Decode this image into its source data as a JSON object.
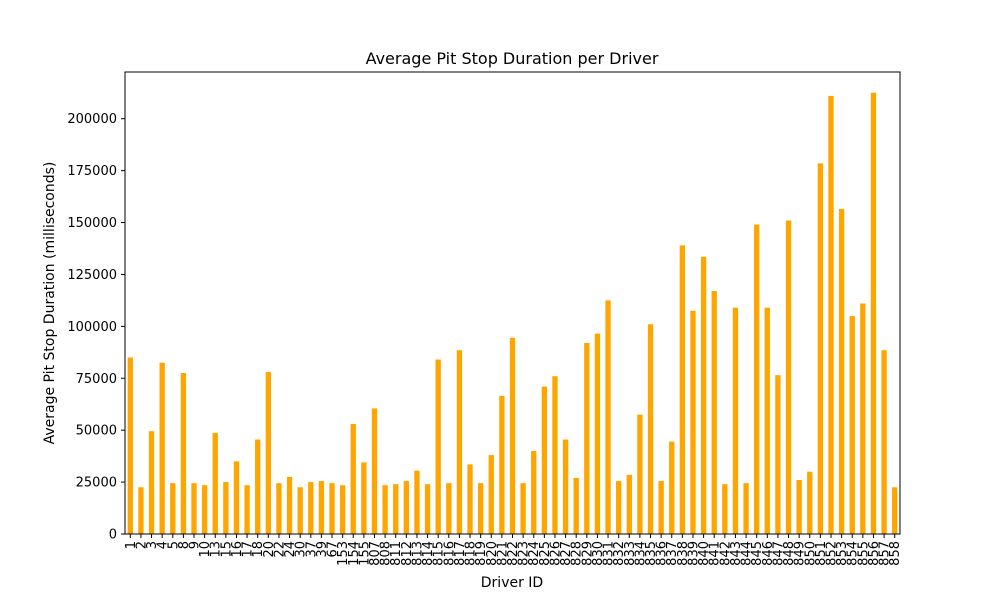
{
  "chart_data": {
    "type": "bar",
    "title": "Average Pit Stop Duration per Driver",
    "xlabel": "Driver ID",
    "ylabel": "Average Pit Stop Duration (milliseconds)",
    "bar_color": "#ffa500",
    "ylim": [
      0,
      222500
    ],
    "yticks": [
      0,
      25000,
      50000,
      75000,
      100000,
      125000,
      150000,
      175000,
      200000
    ],
    "ytick_labels": [
      "0",
      "25000",
      "50000",
      "75000",
      "100000",
      "125000",
      "150000",
      "175000",
      "200000"
    ],
    "categories": [
      "1",
      "2",
      "3",
      "4",
      "5",
      "8",
      "9",
      "10",
      "13",
      "15",
      "16",
      "17",
      "18",
      "20",
      "22",
      "24",
      "30",
      "37",
      "39",
      "67",
      "153",
      "154",
      "155",
      "807",
      "808",
      "811",
      "812",
      "813",
      "814",
      "815",
      "816",
      "817",
      "818",
      "819",
      "820",
      "821",
      "822",
      "823",
      "824",
      "825",
      "826",
      "827",
      "828",
      "829",
      "830",
      "831",
      "832",
      "833",
      "834",
      "835",
      "836",
      "837",
      "838",
      "839",
      "840",
      "841",
      "842",
      "843",
      "844",
      "845",
      "846",
      "847",
      "848",
      "849",
      "850",
      "851",
      "852",
      "853",
      "854",
      "855",
      "856",
      "857",
      "858"
    ],
    "values": [
      85000,
      22500,
      49500,
      82500,
      24500,
      77500,
      24500,
      23500,
      48700,
      25000,
      35000,
      23500,
      45500,
      78000,
      24500,
      27500,
      22500,
      25000,
      25500,
      24500,
      23500,
      53000,
      34500,
      60500,
      23500,
      24000,
      25500,
      30500,
      24000,
      84000,
      24500,
      88500,
      33500,
      24500,
      38000,
      66500,
      94500,
      24500,
      40000,
      71000,
      76000,
      45500,
      27000,
      92000,
      96500,
      112500,
      25500,
      28500,
      57500,
      101000,
      25500,
      44500,
      139000,
      107500,
      133500,
      117000,
      24000,
      109000,
      24500,
      149000,
      109000,
      76500,
      151000,
      26000,
      30000,
      178500,
      211000,
      156500,
      105000,
      111000,
      212500,
      88500,
      22500
    ]
  }
}
